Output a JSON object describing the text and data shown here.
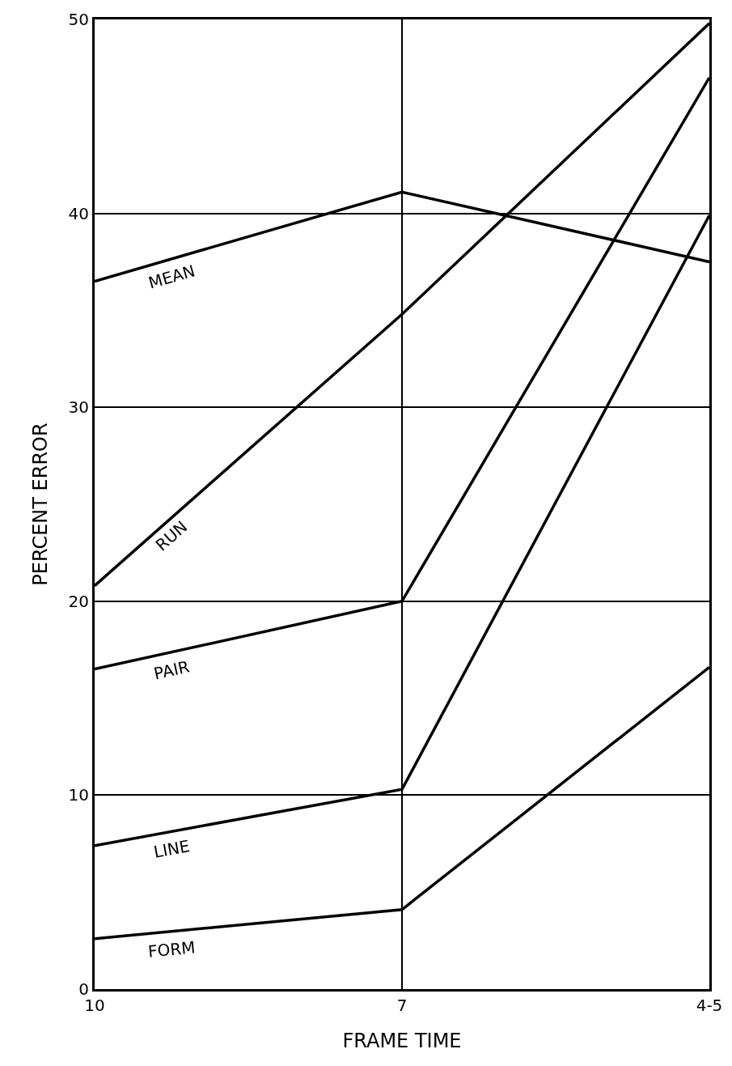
{
  "chart_data": {
    "type": "line",
    "xlabel": "FRAME TIME",
    "ylabel": "PERCENT ERROR",
    "categories": [
      "10",
      "7",
      "4-5"
    ],
    "series": [
      {
        "name": "MEAN",
        "color": "#000000",
        "values": [
          36.5,
          41.1,
          37.5
        ]
      },
      {
        "name": "RUN",
        "color": "#000000",
        "values": [
          20.8,
          34.8,
          49.8
        ]
      },
      {
        "name": "PAIR",
        "color": "#000000",
        "values": [
          16.5,
          20.0,
          47.0
        ]
      },
      {
        "name": "LINE",
        "color": "#000000",
        "values": [
          7.4,
          10.3,
          39.9
        ]
      },
      {
        "name": "FORM",
        "color": "#000000",
        "values": [
          2.6,
          4.1,
          16.6
        ]
      }
    ],
    "ylim": [
      0,
      50
    ],
    "yticks": [
      0,
      10,
      20,
      30,
      40,
      50
    ],
    "grid": true,
    "legend": false,
    "marker": "none",
    "line_style": "solid"
  }
}
